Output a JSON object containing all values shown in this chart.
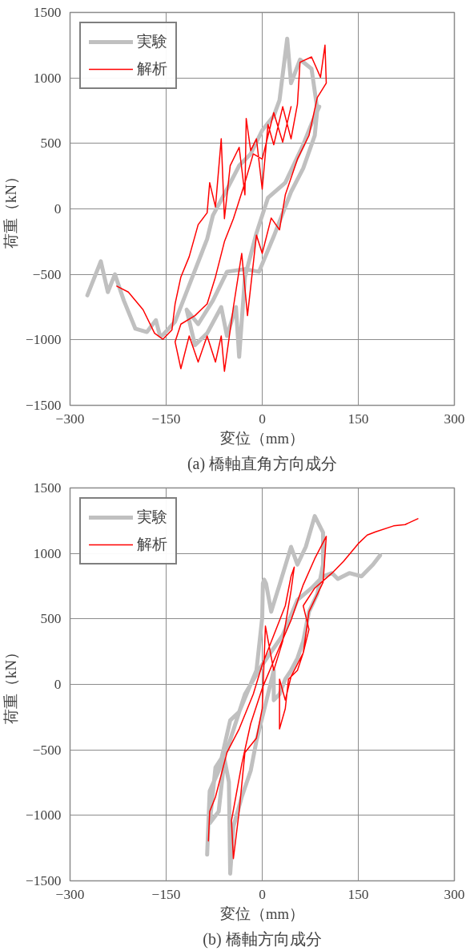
{
  "chart_data": [
    {
      "type": "line",
      "title": "(a) 橋軸直角方向成分",
      "xlabel": "変位（mm）",
      "ylabel": "荷重（kN）",
      "xlim": [
        -300,
        300
      ],
      "xticks": [
        -300,
        -150,
        0,
        150,
        300
      ],
      "ylim": [
        -1500,
        1500
      ],
      "yticks": [
        -1500,
        -1000,
        -500,
        0,
        500,
        1000,
        1500
      ],
      "grid": true,
      "legend": "top left",
      "series": [
        {
          "name": "実験",
          "color": "#c0c0c0",
          "x": [
            -273,
            -252,
            -241,
            -230,
            -216,
            -198,
            -180,
            -166,
            -160,
            -158,
            -155,
            -136,
            -109,
            -86,
            -77,
            -55,
            -36,
            -18,
            0,
            18,
            27,
            39,
            45,
            59,
            77,
            86,
            82,
            64,
            45,
            18,
            -5,
            -27,
            -55,
            -77,
            -100,
            -118,
            -105,
            -86,
            -64,
            -55,
            -41,
            -36,
            -27,
            -9,
            9,
            36,
            64,
            77,
            89
          ],
          "values": [
            -660,
            -400,
            -635,
            -500,
            -700,
            -915,
            -940,
            -850,
            -962,
            -970,
            -962,
            -860,
            -520,
            -230,
            -50,
            150,
            330,
            420,
            600,
            710,
            830,
            1300,
            960,
            1140,
            1070,
            760,
            560,
            310,
            130,
            -210,
            -480,
            -460,
            -480,
            -700,
            -880,
            -770,
            -1040,
            -950,
            -750,
            -970,
            -750,
            -1130,
            -520,
            -185,
            85,
            200,
            490,
            650,
            780
          ]
        },
        {
          "name": "解析",
          "color": "#ff0000",
          "x": [
            -227,
            -209,
            -186,
            -168,
            -155,
            -141,
            -136,
            -127,
            -114,
            -100,
            -86,
            -82,
            -73,
            -64,
            -59,
            -50,
            -36,
            -27,
            -25,
            -18,
            -9,
            0,
            9,
            18,
            32,
            45,
            55,
            59,
            77,
            91,
            98,
            100,
            86,
            73,
            55,
            36,
            27,
            14,
            0,
            -9,
            -23,
            -32,
            -45,
            -59,
            -64,
            -73,
            -86,
            -100,
            -114,
            -127,
            -136,
            -127,
            -105,
            -86,
            -73,
            -59,
            -45,
            -27,
            -14,
            0,
            18,
            32,
            45
          ],
          "values": [
            -590,
            -635,
            -770,
            -950,
            -995,
            -925,
            -725,
            -520,
            -365,
            -120,
            -30,
            200,
            15,
            535,
            -75,
            330,
            470,
            107,
            690,
            445,
            535,
            150,
            645,
            490,
            780,
            535,
            800,
            1120,
            1160,
            1005,
            1250,
            960,
            850,
            560,
            380,
            107,
            -160,
            -70,
            -340,
            -200,
            -815,
            -340,
            -750,
            -1240,
            -970,
            -1170,
            -970,
            -1170,
            -970,
            -1220,
            -1015,
            -880,
            -815,
            -725,
            -520,
            -250,
            -75,
            200,
            420,
            380,
            735,
            510,
            780
          ]
        }
      ]
    },
    {
      "type": "line",
      "title": "(b) 橋軸方向成分",
      "xlabel": "変位（mm）",
      "ylabel": "荷重（kN）",
      "xlim": [
        -300,
        300
      ],
      "xticks": [
        -300,
        -150,
        0,
        150,
        300
      ],
      "ylim": [
        -1500,
        1500
      ],
      "yticks": [
        -1500,
        -1000,
        -500,
        0,
        500,
        1000,
        1500
      ],
      "grid": true,
      "legend": "top left",
      "series": [
        {
          "name": "実験",
          "color": "#c0c0c0",
          "x": [
            -86,
            -82,
            -68,
            -50,
            -36,
            -9,
            0,
            1,
            3,
            6,
            14,
            27,
            45,
            55,
            68,
            82,
            95,
            95,
            86,
            73,
            64,
            55,
            45,
            36,
            27,
            18,
            18,
            9,
            -9,
            -18,
            -32,
            -45,
            -50,
            -52,
            -59,
            -68,
            -82,
            -73,
            -55,
            -27,
            0,
            32,
            55,
            77,
            95,
            109,
            118,
            136,
            155,
            173,
            184
          ],
          "values": [
            -1300,
            -815,
            -660,
            -275,
            -210,
            107,
            510,
            770,
            800,
            770,
            555,
            760,
            1050,
            915,
            1050,
            1285,
            1160,
            915,
            690,
            555,
            330,
            200,
            107,
            40,
            -75,
            -120,
            107,
            -75,
            -430,
            -660,
            -860,
            -1085,
            -1445,
            -745,
            -570,
            -970,
            -1060,
            -635,
            -500,
            -75,
            150,
            375,
            645,
            735,
            825,
            850,
            805,
            850,
            825,
            915,
            985
          ]
        },
        {
          "name": "解析",
          "color": "#ff0000",
          "x": [
            -84,
            -82,
            -73,
            -55,
            -36,
            -14,
            0,
            18,
            36,
            45,
            50,
            45,
            32,
            18,
            5,
            0,
            -9,
            -27,
            -36,
            -45,
            -48,
            -32,
            -18,
            0,
            27,
            45,
            64,
            82,
            100,
            95,
            73,
            64,
            55,
            41,
            36,
            27,
            27,
            36,
            45,
            64,
            73,
            64,
            82,
            109,
            127,
            150,
            164,
            177,
            205,
            223,
            243
          ],
          "values": [
            -1195,
            -970,
            -860,
            -520,
            -340,
            -75,
            150,
            375,
            600,
            825,
            895,
            715,
            330,
            107,
            445,
            -185,
            -410,
            -520,
            -970,
            -1330,
            -1040,
            -610,
            -300,
            -30,
            285,
            490,
            760,
            960,
            1130,
            780,
            555,
            240,
            107,
            40,
            -185,
            -340,
            40,
            -120,
            60,
            240,
            420,
            600,
            735,
            850,
            940,
            1075,
            1140,
            1165,
            1210,
            1220,
            1265
          ]
        }
      ]
    }
  ]
}
